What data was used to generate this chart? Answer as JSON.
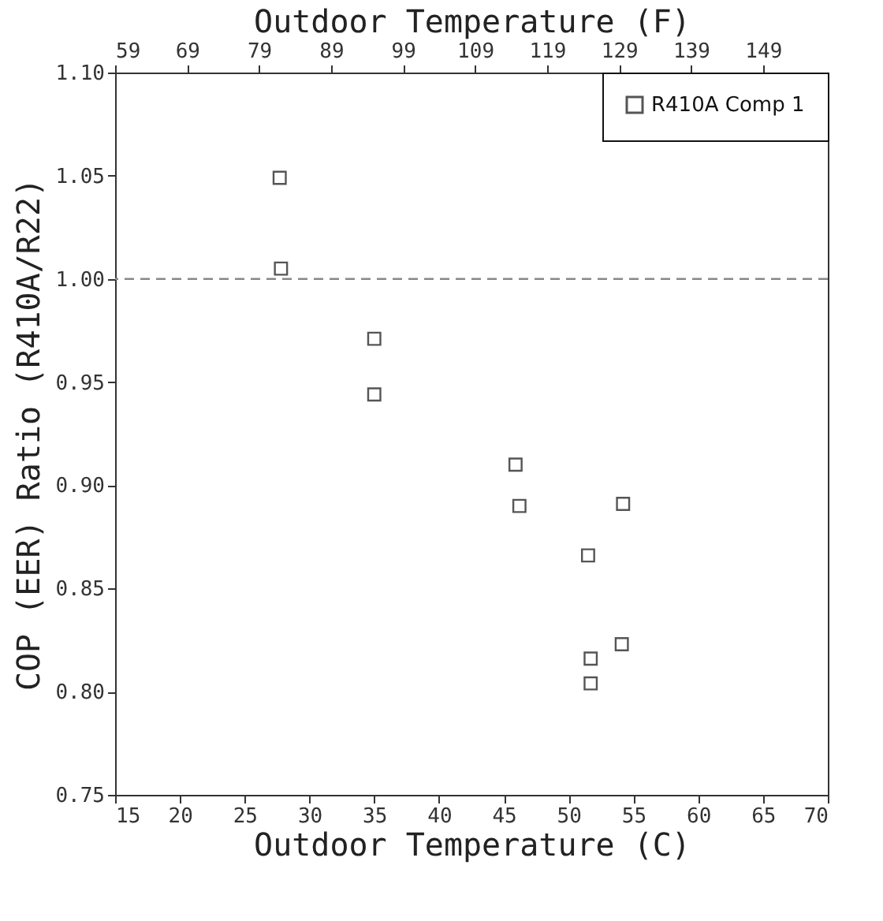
{
  "chart_data": {
    "type": "scatter",
    "xlabel": "Outdoor Temperature (C)",
    "x2label": "Outdoor Temperature (F)",
    "ylabel": "COP (EER) Ratio (R410A/R22)",
    "xlim": [
      15,
      70
    ],
    "xticks": [
      15,
      20,
      25,
      30,
      35,
      40,
      45,
      50,
      55,
      60,
      65,
      70
    ],
    "x2lim": [
      59,
      158
    ],
    "x2ticks": [
      59,
      69,
      79,
      89,
      99,
      109,
      119,
      129,
      139,
      149
    ],
    "ylim": [
      0.75,
      1.1
    ],
    "yticks": [
      {
        "value": 0.75,
        "label": "0.75"
      },
      {
        "value": 0.8,
        "label": "0.80"
      },
      {
        "value": 0.85,
        "label": "0.85"
      },
      {
        "value": 0.9,
        "label": "0.90"
      },
      {
        "value": 0.95,
        "label": "0.95"
      },
      {
        "value": 1.0,
        "label": "1.00"
      },
      {
        "value": 1.05,
        "label": "1.05"
      },
      {
        "value": 1.1,
        "label": "1.10"
      }
    ],
    "series": [
      {
        "name": "R410A Comp 1",
        "color": "#555555",
        "x": [
          27.7,
          27.8,
          35.0,
          35.0,
          45.9,
          46.2,
          51.5,
          51.7,
          51.7,
          54.2,
          54.1
        ],
        "values": [
          1.049,
          1.005,
          0.971,
          0.944,
          0.91,
          0.89,
          0.866,
          0.816,
          0.804,
          0.891,
          0.823
        ]
      }
    ],
    "marker": "square",
    "legend": "top right",
    "grid": false,
    "ref_lines": [
      {
        "axis": "y",
        "value": 1.0,
        "line_style": "dashed",
        "color": "#888888"
      }
    ]
  }
}
